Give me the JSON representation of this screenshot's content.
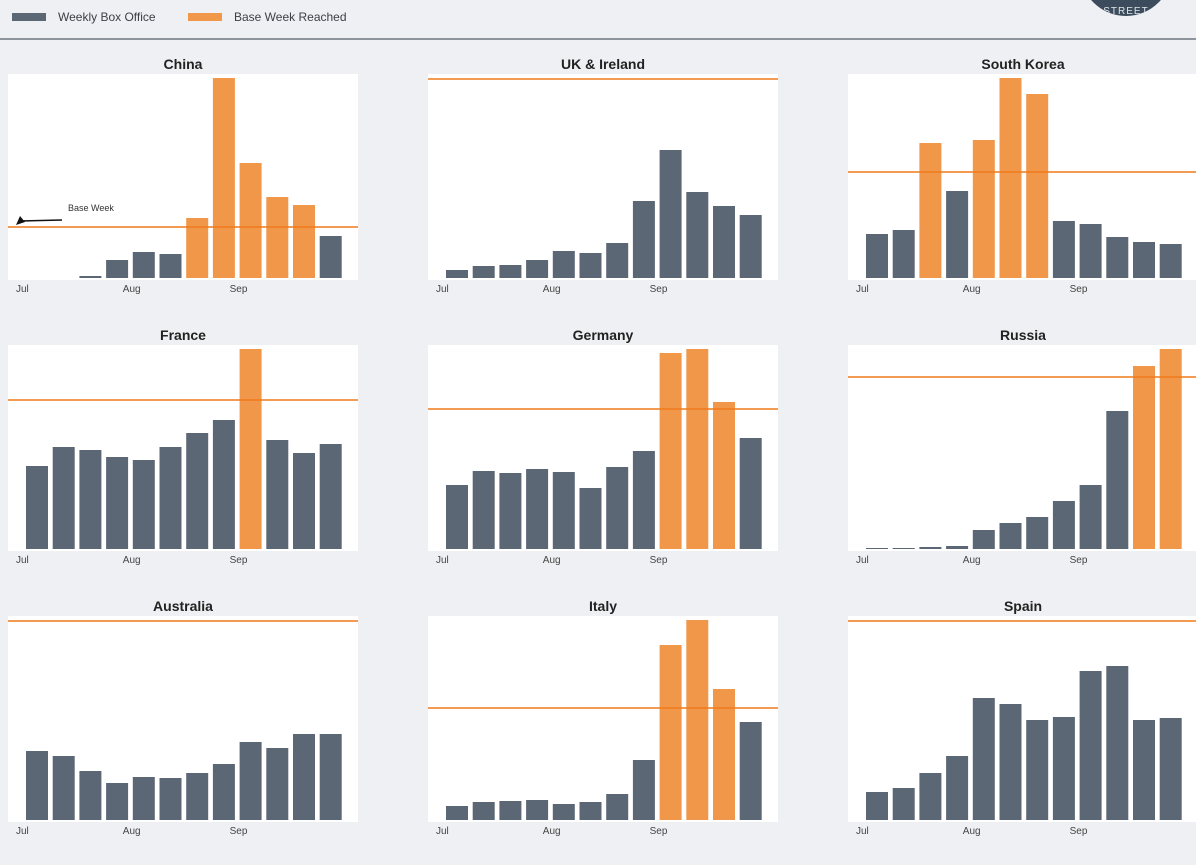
{
  "legend": {
    "weekly": "Weekly Box Office",
    "base": "Base Week Reached"
  },
  "logo_text": "STREET",
  "colors": {
    "weekly": "#5c6775",
    "base": "#f0974a",
    "line": "#f07a1a"
  },
  "chart_data": [
    {
      "type": "bar",
      "title": "China",
      "values": [
        0,
        0,
        2,
        18,
        26,
        24,
        60,
        200,
        115,
        81,
        73,
        42
      ],
      "reached": [
        false,
        false,
        false,
        false,
        false,
        false,
        true,
        true,
        true,
        true,
        true,
        false
      ],
      "base_week": 52,
      "ylim": [
        0,
        200
      ],
      "x_ticks": [
        {
          "index": 0,
          "label": "Jul"
        },
        {
          "index": 4,
          "label": "Aug"
        },
        {
          "index": 8,
          "label": "Sep"
        }
      ],
      "annotation": "Base Week"
    },
    {
      "type": "bar",
      "title": "UK & Ireland",
      "values": [
        8,
        12,
        13,
        18,
        27,
        25,
        35,
        77,
        128,
        86,
        72,
        63
      ],
      "reached": [
        false,
        false,
        false,
        false,
        false,
        false,
        false,
        false,
        false,
        false,
        false,
        false
      ],
      "base_week": 200,
      "ylim": [
        0,
        200
      ],
      "x_ticks": [
        {
          "index": 0,
          "label": "Jul"
        },
        {
          "index": 4,
          "label": "Aug"
        },
        {
          "index": 8,
          "label": "Sep"
        }
      ],
      "annotation": ""
    },
    {
      "type": "bar",
      "title": "South Korea",
      "values": [
        44,
        48,
        135,
        87,
        138,
        200,
        184,
        57,
        54,
        41,
        36,
        34
      ],
      "reached": [
        false,
        false,
        true,
        false,
        true,
        true,
        true,
        false,
        false,
        false,
        false,
        false
      ],
      "base_week": 107,
      "ylim": [
        0,
        200
      ],
      "x_ticks": [
        {
          "index": 0,
          "label": "Jul"
        },
        {
          "index": 4,
          "label": "Aug"
        },
        {
          "index": 8,
          "label": "Sep"
        }
      ],
      "annotation": ""
    },
    {
      "type": "bar",
      "title": "France",
      "values": [
        83,
        102,
        99,
        92,
        89,
        102,
        116,
        129,
        200,
        109,
        96,
        105
      ],
      "reached": [
        false,
        false,
        false,
        false,
        false,
        false,
        false,
        false,
        true,
        false,
        false,
        false
      ],
      "base_week": 150,
      "ylim": [
        0,
        200
      ],
      "x_ticks": [
        {
          "index": 0,
          "label": "Jul"
        },
        {
          "index": 4,
          "label": "Aug"
        },
        {
          "index": 8,
          "label": "Sep"
        }
      ],
      "annotation": ""
    },
    {
      "type": "bar",
      "title": "Germany",
      "values": [
        64,
        78,
        76,
        80,
        77,
        61,
        82,
        98,
        196,
        200,
        147,
        111
      ],
      "reached": [
        false,
        false,
        false,
        false,
        false,
        false,
        false,
        false,
        true,
        true,
        true,
        false
      ],
      "base_week": 141,
      "ylim": [
        0,
        200
      ],
      "x_ticks": [
        {
          "index": 0,
          "label": "Jul"
        },
        {
          "index": 4,
          "label": "Aug"
        },
        {
          "index": 8,
          "label": "Sep"
        }
      ],
      "annotation": ""
    },
    {
      "type": "bar",
      "title": "Russia",
      "values": [
        1,
        1,
        2,
        3,
        19,
        26,
        32,
        48,
        64,
        138,
        183,
        200
      ],
      "reached": [
        false,
        false,
        false,
        false,
        false,
        false,
        false,
        false,
        false,
        false,
        true,
        true
      ],
      "base_week": 173,
      "ylim": [
        0,
        200
      ],
      "x_ticks": [
        {
          "index": 0,
          "label": "Jul"
        },
        {
          "index": 4,
          "label": "Aug"
        },
        {
          "index": 8,
          "label": "Sep"
        }
      ],
      "annotation": ""
    },
    {
      "type": "bar",
      "title": "Australia",
      "values": [
        69,
        64,
        49,
        37,
        43,
        42,
        47,
        56,
        78,
        72,
        86,
        86
      ],
      "reached": [
        false,
        false,
        false,
        false,
        false,
        false,
        false,
        false,
        false,
        false,
        false,
        false
      ],
      "base_week": 200,
      "ylim": [
        0,
        200
      ],
      "x_ticks": [
        {
          "index": 0,
          "label": "Jul"
        },
        {
          "index": 4,
          "label": "Aug"
        },
        {
          "index": 8,
          "label": "Sep"
        }
      ],
      "annotation": ""
    },
    {
      "type": "bar",
      "title": "Italy",
      "values": [
        14,
        18,
        19,
        20,
        16,
        18,
        26,
        60,
        175,
        200,
        131,
        98
      ],
      "reached": [
        false,
        false,
        false,
        false,
        false,
        false,
        false,
        false,
        true,
        true,
        true,
        false
      ],
      "base_week": 113,
      "ylim": [
        0,
        200
      ],
      "x_ticks": [
        {
          "index": 0,
          "label": "Jul"
        },
        {
          "index": 4,
          "label": "Aug"
        },
        {
          "index": 8,
          "label": "Sep"
        }
      ],
      "annotation": ""
    },
    {
      "type": "bar",
      "title": "Spain",
      "values": [
        28,
        32,
        47,
        64,
        122,
        116,
        100,
        103,
        149,
        154,
        100,
        102
      ],
      "reached": [
        false,
        false,
        false,
        false,
        false,
        false,
        false,
        false,
        false,
        false,
        false,
        false
      ],
      "base_week": 200,
      "ylim": [
        0,
        200
      ],
      "x_ticks": [
        {
          "index": 0,
          "label": "Jul"
        },
        {
          "index": 4,
          "label": "Aug"
        },
        {
          "index": 8,
          "label": "Sep"
        }
      ],
      "annotation": ""
    }
  ]
}
